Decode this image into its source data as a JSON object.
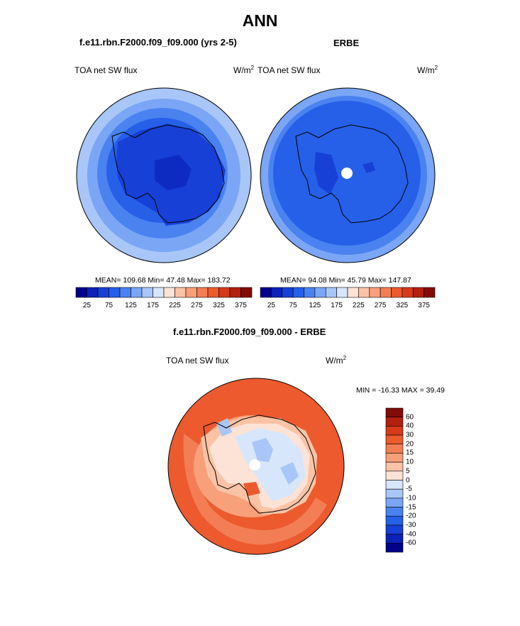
{
  "title": "ANN",
  "panels": [
    {
      "heading": "f.e11.rbn.F2000.f09_f09.000 (yrs 2-5)",
      "var_label": "TOA net SW flux",
      "unit": "W/m",
      "unit_sup": "2",
      "stats": "MEAN= 109.68  Min=  47.48  Max= 183.72"
    },
    {
      "heading": "ERBE",
      "var_label": "TOA net SW flux",
      "unit": "W/m",
      "unit_sup": "2",
      "stats": "MEAN=  94.08  Min=  45.79  Max= 147.87"
    }
  ],
  "top_colorbar": {
    "colors": [
      "#00008a",
      "#0b22b8",
      "#1640d6",
      "#2660e8",
      "#4a82f0",
      "#7aa6f5",
      "#a8c6f8",
      "#d8e6fb",
      "#fde3d6",
      "#fbc3a6",
      "#f8a07a",
      "#f37e55",
      "#ec5a2e",
      "#d63a1a",
      "#b22010",
      "#820c06"
    ],
    "ticks": [
      "25",
      "75",
      "125",
      "175",
      "225",
      "275",
      "325",
      "375"
    ]
  },
  "diff": {
    "heading": "f.e11.rbn.F2000.f09_f09.000 - ERBE",
    "var_label": "TOA net SW flux",
    "unit": "W/m",
    "unit_sup": "2",
    "minmax": "MIN = -16.33 MAX =  39.49"
  },
  "diff_colorbar": {
    "colors": [
      "#820c06",
      "#b22010",
      "#d63a1a",
      "#ec5a2e",
      "#f37e55",
      "#f8a07a",
      "#fbc3a6",
      "#fde3d6",
      "#d8e6fb",
      "#a8c6f8",
      "#7aa6f5",
      "#4a82f0",
      "#2660e8",
      "#1640d6",
      "#0b22b8",
      "#00008a"
    ],
    "ticks": [
      "60",
      "40",
      "30",
      "20",
      "15",
      "10",
      "5",
      "0",
      "-5",
      "-10",
      "-15",
      "-20",
      "-30",
      "-40",
      "-60"
    ]
  }
}
